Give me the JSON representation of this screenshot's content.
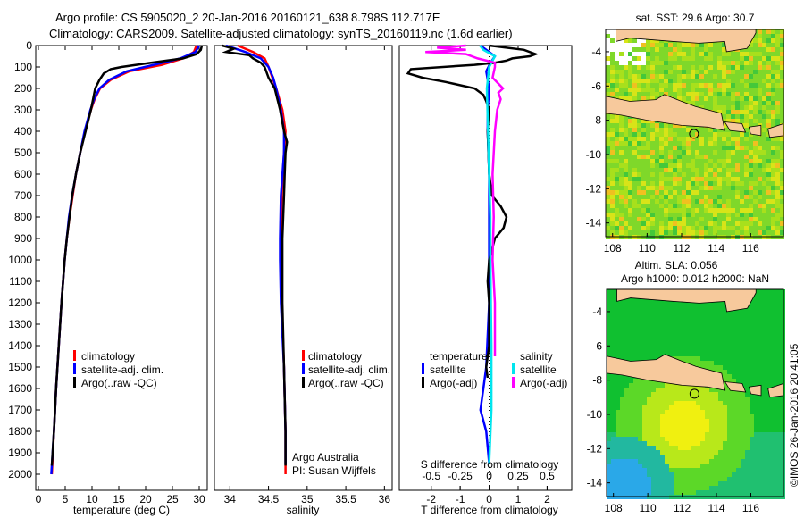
{
  "title_line1": "Argo profile: CS 5905020_2 20-Jan-2016 20160121_638 8.798S 112.717E",
  "title_line2": "Climatology: CARS2009. Satellite-adjusted climatology: synTS_20160119.nc (1.6d earlier)",
  "colors": {
    "climatology": "#ff0000",
    "satellite": "#0000ff",
    "argo": "#000000",
    "sat_salt": "#00e5ee",
    "argo_salt": "#ff00ff",
    "land": "#f7c99c"
  },
  "chart_data": [
    {
      "type": "line",
      "name": "temperature",
      "xlabel": "temperature (deg C)",
      "ylabel": "depth",
      "xlim": [
        -0.5,
        31.5
      ],
      "ylim": [
        0,
        2075
      ],
      "xticks": [
        "0",
        "5",
        "10",
        "15",
        "20",
        "25",
        "30"
      ],
      "xtick_values": [
        0,
        5,
        10,
        15,
        20,
        25,
        30
      ],
      "yticks": [
        "0",
        "100",
        "200",
        "300",
        "400",
        "500",
        "600",
        "700",
        "800",
        "900",
        "1000",
        "1100",
        "1200",
        "1300",
        "1400",
        "1500",
        "1600",
        "1700",
        "1800",
        "1900",
        "2000"
      ],
      "legend": [
        "climatology",
        "satellite-adj. clim.",
        "Argo(..raw -QC)"
      ],
      "series": [
        {
          "name": "climatology",
          "color": "#ff0000",
          "depth": [
            0,
            30,
            60,
            90,
            120,
            160,
            200,
            250,
            300,
            400,
            500,
            600,
            700,
            800,
            900,
            1000,
            1200,
            1400,
            1600,
            1800,
            2000
          ],
          "values": [
            29.5,
            29,
            27,
            23,
            17,
            13.5,
            11.5,
            10.5,
            9.8,
            8.7,
            7.8,
            7,
            6.4,
            5.8,
            5.3,
            4.9,
            4.3,
            3.8,
            3.3,
            2.9,
            2.5
          ]
        },
        {
          "name": "satellite-adj. clim.",
          "color": "#0000ff",
          "depth": [
            0,
            30,
            60,
            90,
            120,
            160,
            200,
            250,
            300,
            400,
            500,
            600,
            700,
            800,
            900,
            1000,
            1200,
            1400,
            1600,
            1800,
            2000
          ],
          "values": [
            30,
            29.3,
            26.5,
            21.5,
            16.5,
            13.2,
            11.4,
            10.4,
            9.7,
            8.6,
            7.8,
            7,
            6.3,
            5.7,
            5.3,
            4.9,
            4.3,
            3.8,
            3.3,
            2.9,
            2.4
          ]
        },
        {
          "name": "Argo(..raw -QC)",
          "color": "#000000",
          "depth": [
            0,
            20,
            40,
            60,
            80,
            100,
            110,
            130,
            160,
            200,
            250,
            300,
            400,
            500,
            600,
            700,
            800,
            900,
            1000,
            1200,
            1400,
            1600,
            1800,
            1960
          ],
          "values": [
            30.5,
            30.3,
            29.5,
            27,
            21,
            15.5,
            13.5,
            12.2,
            11.4,
            10.6,
            10.2,
            9.8,
            8.8,
            7.8,
            7,
            6.3,
            5.8,
            5.3,
            4.9,
            4.3,
            3.8,
            3.3,
            2.9,
            2.5
          ]
        }
      ]
    },
    {
      "type": "line",
      "name": "salinity",
      "xlabel": "salinity",
      "xlim": [
        33.8,
        36.1
      ],
      "ylim": [
        0,
        2075
      ],
      "xticks": [
        "34",
        "34.5",
        "35",
        "35.5",
        "36"
      ],
      "xtick_values": [
        34,
        34.5,
        35,
        35.5,
        36
      ],
      "legend": [
        "climatology",
        "satellite-adj. clim.",
        "Argo(..raw -QC)"
      ],
      "credit": [
        "Argo Australia",
        "PI: Susan Wijffels"
      ],
      "series": [
        {
          "name": "climatology",
          "color": "#ff0000",
          "depth": [
            0,
            30,
            60,
            100,
            150,
            200,
            300,
            400,
            500,
            700,
            900,
            1000,
            1200,
            1500,
            1800,
            2000
          ],
          "values": [
            34.1,
            34.3,
            34.45,
            34.5,
            34.55,
            34.6,
            34.68,
            34.72,
            34.7,
            34.67,
            34.66,
            34.66,
            34.67,
            34.7,
            34.72,
            34.72
          ]
        },
        {
          "name": "satellite-adj. clim.",
          "color": "#0000ff",
          "depth": [
            0,
            30,
            60,
            100,
            150,
            200,
            300,
            400,
            500,
            700,
            900,
            1000,
            1200,
            1500,
            1800,
            1950
          ],
          "values": [
            33.95,
            34.2,
            34.4,
            34.5,
            34.56,
            34.6,
            34.66,
            34.7,
            34.7,
            34.66,
            34.65,
            34.65,
            34.66,
            34.7,
            34.72,
            34.72
          ]
        },
        {
          "name": "Argo(..raw -QC)",
          "color": "#000000",
          "depth": [
            0,
            15,
            30,
            45,
            60,
            80,
            100,
            150,
            200,
            300,
            400,
            450,
            500,
            600,
            700,
            800,
            900,
            1000,
            1200,
            1500,
            1800,
            1960
          ],
          "values": [
            33.9,
            34.05,
            33.95,
            34.25,
            34.3,
            34.4,
            34.45,
            34.5,
            34.58,
            34.65,
            34.7,
            34.74,
            34.72,
            34.71,
            34.7,
            34.69,
            34.68,
            34.68,
            34.68,
            34.7,
            34.72,
            34.72
          ]
        }
      ]
    },
    {
      "type": "line",
      "name": "difference",
      "xlabel": "T difference from climatology",
      "xlabel2": "S difference from climatology",
      "xlim": [
        -3.1,
        2.85
      ],
      "ylim": [
        0,
        2075
      ],
      "xticks": [
        "-2",
        "-1",
        "0",
        "1",
        "2"
      ],
      "xtick_values": [
        -2,
        -1,
        0,
        1,
        2
      ],
      "sticks": [
        "-0.5",
        "-0.25",
        "0",
        "0.25",
        "0.5"
      ],
      "stick_values": [
        -0.5,
        -0.25,
        0,
        0.25,
        0.5
      ],
      "legend_temperature": {
        "title": "temperature",
        "items": [
          "satellite",
          "Argo(-adj)"
        ]
      },
      "legend_salinity": {
        "title": "salinity",
        "items": [
          "satellite",
          "Argo(-adj)"
        ]
      },
      "series": [
        {
          "name": "T satellite",
          "color": "#0000ff",
          "scale": "T",
          "depth": [
            0,
            20,
            50,
            80,
            120,
            200,
            300,
            400,
            600,
            800,
            1000,
            1200,
            1500,
            1600,
            1700,
            1750,
            1800,
            1950
          ],
          "values": [
            -0.3,
            -0.1,
            0.2,
            0.05,
            -0.1,
            0,
            -0.05,
            -0.05,
            0,
            0,
            0,
            0,
            -0.1,
            -0.2,
            -0.3,
            -0.2,
            -0.1,
            0
          ]
        },
        {
          "name": "T Argo(-adj)",
          "color": "#000000",
          "scale": "T",
          "depth": [
            0,
            20,
            40,
            50,
            60,
            70,
            80,
            90,
            110,
            130,
            150,
            170,
            200,
            230,
            260,
            300,
            400,
            600,
            700,
            750,
            800,
            850,
            900,
            1000,
            1100,
            1200,
            1400,
            1500,
            1550
          ],
          "values": [
            0,
            1.2,
            1.6,
            1.4,
            0.8,
            0.6,
            0.2,
            -0.5,
            -2.7,
            -2.8,
            -2.3,
            -1.5,
            -0.5,
            -0.2,
            -0.1,
            0,
            -0.05,
            0,
            0.1,
            0.4,
            0.6,
            0.5,
            0.2,
            0,
            -0.05,
            0,
            0,
            -0.1,
            -0.05
          ]
        },
        {
          "name": "S satellite",
          "color": "#00e5ee",
          "scale": "S",
          "depth": [
            0,
            20,
            50,
            100,
            200,
            400,
            600,
            800,
            1000,
            1400,
            1700,
            1950
          ],
          "values": [
            -0.08,
            -0.05,
            0.05,
            0,
            -0.02,
            -0.01,
            0,
            0.01,
            0.01,
            0.02,
            0.02,
            0
          ]
        },
        {
          "name": "S Argo(-adj)",
          "color": "#ff00ff",
          "scale": "S",
          "depth": [
            0,
            10,
            20,
            30,
            40,
            60,
            80,
            100,
            150,
            200,
            220,
            250,
            300,
            400,
            600,
            800,
            1000,
            1200,
            1450
          ],
          "values": [
            -0.2,
            -0.45,
            -0.2,
            -0.55,
            -0.2,
            -0.1,
            0.05,
            0.05,
            0.03,
            0.12,
            0.08,
            0.1,
            0.07,
            0.05,
            0.03,
            0.04,
            0.03,
            0.05,
            0.05
          ]
        }
      ]
    }
  ],
  "maps": [
    {
      "title": "sat. SST: 29.6 Argo: 30.7",
      "lon_ticks": [
        "108",
        "110",
        "112",
        "114",
        "116"
      ],
      "lat_ticks": [
        "-4",
        "-6",
        "-8",
        "-10",
        "-12",
        "-14"
      ],
      "argo_lon": 112.717,
      "argo_lat": -8.798
    },
    {
      "title1": "Altim. SLA: 0.056",
      "title2": "Argo h1000: 0.012 h2000: NaN",
      "lon_ticks": [
        "108",
        "110",
        "112",
        "114",
        "116"
      ],
      "lat_ticks": [
        "-4",
        "-6",
        "-8",
        "-10",
        "-12",
        "-14"
      ],
      "argo_lon": 112.717,
      "argo_lat": -8.798
    }
  ],
  "copyright": "©IMOS 26-Jan-2016 20:41:05"
}
